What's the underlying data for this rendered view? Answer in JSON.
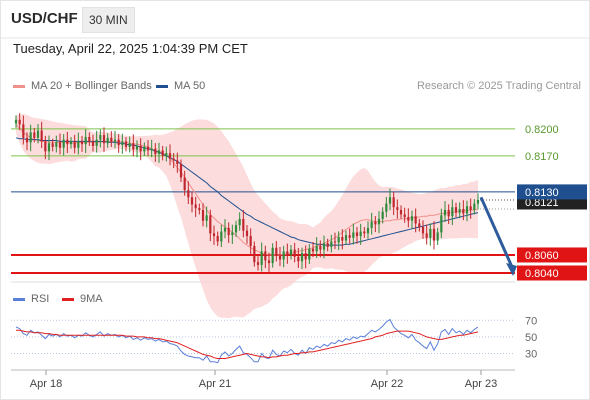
{
  "header": {
    "pair": "USD/CHF",
    "timeframe": "30 MIN"
  },
  "datetime": "Tuesday, April 22, 2025 1:04:39 PM CET",
  "credit": "Research © 2025 Trading Central",
  "legend": {
    "ma20": "MA 20 + Bollinger Bands",
    "ma50": "MA 50",
    "rsi": "RSI",
    "ma9": "9MA"
  },
  "colors": {
    "up": "#2f8a3c",
    "down": "#c0262d",
    "ma20": "#f0908a",
    "ma50": "#1f4f8f",
    "band": "#fbd0d0",
    "resistance": "#7cc44a",
    "support": "#e01414",
    "current": "#1f4f8f",
    "arrow": "#2d5b9c",
    "rsi": "#5a7fd8",
    "rsi_ma": "#e02020"
  },
  "chart_data": [
    {
      "type": "candlestick",
      "title": "USD/CHF 30 MIN",
      "ylim": [
        0.803,
        0.8232
      ],
      "x_ticks": [
        "Apr 18",
        "Apr 21",
        "Apr 22",
        "Apr 23"
      ],
      "current_price": "0.8121",
      "levels": [
        {
          "label": "0.8200",
          "value": 0.82,
          "kind": "resistance"
        },
        {
          "label": "0.8170",
          "value": 0.817,
          "kind": "resistance"
        },
        {
          "label": "0.8130",
          "value": 0.813,
          "kind": "pivot"
        },
        {
          "label": "0.8060",
          "value": 0.806,
          "kind": "support"
        },
        {
          "label": "0.8040",
          "value": 0.804,
          "kind": "support"
        }
      ],
      "forecast": {
        "from": 0.8124,
        "to": 0.804
      },
      "series": [
        {
          "name": "Close",
          "values": [
            0.821,
            0.8205,
            0.819,
            0.8185,
            0.8196,
            0.819,
            0.8198,
            0.8186,
            0.8175,
            0.8184,
            0.818,
            0.8185,
            0.8179,
            0.8188,
            0.8183,
            0.8186,
            0.8179,
            0.8186,
            0.8183,
            0.8191,
            0.8186,
            0.8181,
            0.8188,
            0.8193,
            0.8184,
            0.819,
            0.8186,
            0.8188,
            0.8182,
            0.8186,
            0.818,
            0.8184,
            0.8177,
            0.8181,
            0.8175,
            0.818,
            0.8176,
            0.8178,
            0.8172,
            0.8176,
            0.817,
            0.8173,
            0.8167,
            0.8165,
            0.8161,
            0.8146,
            0.8132,
            0.8124,
            0.8116,
            0.8112,
            0.811,
            0.8098,
            0.8104,
            0.8084,
            0.8081,
            0.8075,
            0.8086,
            0.809,
            0.8082,
            0.8085,
            0.8093,
            0.81,
            0.8087,
            0.8081,
            0.807,
            0.8052,
            0.8049,
            0.8064,
            0.8054,
            0.8051,
            0.8068,
            0.8059,
            0.8055,
            0.8064,
            0.806,
            0.8066,
            0.8058,
            0.8053,
            0.8062,
            0.8055,
            0.8067,
            0.8064,
            0.807,
            0.8066,
            0.8073,
            0.8069,
            0.8075,
            0.8074,
            0.808,
            0.8076,
            0.8082,
            0.8079,
            0.8085,
            0.8081,
            0.8086,
            0.8084,
            0.809,
            0.8097,
            0.8094,
            0.81,
            0.8108,
            0.8117,
            0.8124,
            0.8113,
            0.811,
            0.8105,
            0.8102,
            0.8098,
            0.8103,
            0.8095,
            0.8091,
            0.8084,
            0.8079,
            0.8089,
            0.8076,
            0.8085,
            0.8104,
            0.811,
            0.8103,
            0.8113,
            0.8107,
            0.8111,
            0.8106,
            0.8114,
            0.811,
            0.8117,
            0.8121
          ]
        },
        {
          "name": "MA 20",
          "values": [
            0.8205,
            0.82,
            0.8196,
            0.8193,
            0.819,
            0.8188,
            0.8187,
            0.8186,
            0.8186,
            0.8185,
            0.8185,
            0.8185,
            0.8185,
            0.8185,
            0.8185,
            0.8184,
            0.8184,
            0.8185,
            0.8185,
            0.8185,
            0.8185,
            0.8185,
            0.8185,
            0.8185,
            0.8186,
            0.8186,
            0.8186,
            0.8186,
            0.8186,
            0.8185,
            0.8185,
            0.8184,
            0.8183,
            0.8183,
            0.8182,
            0.8181,
            0.818,
            0.8178,
            0.8176,
            0.8175,
            0.8173,
            0.8171,
            0.8167,
            0.8162,
            0.8157,
            0.8152,
            0.8146,
            0.814,
            0.8134,
            0.8128,
            0.8122,
            0.8116,
            0.811,
            0.8105,
            0.8101,
            0.8097,
            0.8094,
            0.8091,
            0.8088,
            0.8085,
            0.8082,
            0.8078,
            0.8074,
            0.8071,
            0.8068,
            0.8066,
            0.8064,
            0.8062,
            0.8061,
            0.806,
            0.806,
            0.806,
            0.806,
            0.8061,
            0.8061,
            0.8062,
            0.8063,
            0.8064,
            0.8065,
            0.8066,
            0.8067,
            0.8068,
            0.807,
            0.8071,
            0.8073,
            0.8075,
            0.8077,
            0.8079,
            0.8082,
            0.8085,
            0.8088,
            0.8091,
            0.8094,
            0.8096,
            0.8098,
            0.8099,
            0.8099,
            0.8098,
            0.8097,
            0.8097,
            0.8097,
            0.8098,
            0.8098,
            0.8099,
            0.8099,
            0.81,
            0.81,
            0.8101,
            0.8101,
            0.8102,
            0.8102,
            0.8103,
            0.8103,
            0.8104,
            0.8104,
            0.8105,
            0.8106,
            0.8106,
            0.8107,
            0.8107,
            0.8108,
            0.8108,
            0.8109,
            0.8109,
            0.811,
            0.811,
            0.8111
          ]
        },
        {
          "name": "MA 50",
          "values": [
            0.819,
            0.8189,
            0.8189,
            0.8188,
            0.8188,
            0.8188,
            0.8188,
            0.8187,
            0.8187,
            0.8187,
            0.8187,
            0.8187,
            0.8186,
            0.8186,
            0.8186,
            0.8186,
            0.8186,
            0.8186,
            0.8186,
            0.8186,
            0.8186,
            0.8186,
            0.8186,
            0.8186,
            0.8186,
            0.8185,
            0.8185,
            0.8185,
            0.8184,
            0.8184,
            0.8183,
            0.8182,
            0.8182,
            0.8181,
            0.818,
            0.8179,
            0.8178,
            0.8177,
            0.8175,
            0.8174,
            0.8172,
            0.817,
            0.8168,
            0.8166,
            0.8164,
            0.8161,
            0.8158,
            0.8155,
            0.8152,
            0.8149,
            0.8146,
            0.8143,
            0.814,
            0.8136,
            0.8133,
            0.813,
            0.8126,
            0.8123,
            0.812,
            0.8117,
            0.8114,
            0.8111,
            0.8108,
            0.8105,
            0.8103,
            0.81,
            0.8098,
            0.8096,
            0.8094,
            0.8092,
            0.809,
            0.8088,
            0.8086,
            0.8084,
            0.8082,
            0.808,
            0.8079,
            0.8077,
            0.8076,
            0.8075,
            0.8074,
            0.8073,
            0.8072,
            0.8072,
            0.8071,
            0.8071,
            0.8071,
            0.8071,
            0.8071,
            0.8071,
            0.8072,
            0.8072,
            0.8073,
            0.8074,
            0.8075,
            0.8076,
            0.8077,
            0.8078,
            0.8079,
            0.808,
            0.8081,
            0.8082,
            0.8083,
            0.8084,
            0.8085,
            0.8086,
            0.8087,
            0.8088,
            0.8089,
            0.809,
            0.8091,
            0.8092,
            0.8093,
            0.8094,
            0.8095,
            0.8096,
            0.8097,
            0.8098,
            0.8099,
            0.81,
            0.8101,
            0.8102,
            0.8103,
            0.8104,
            0.8105,
            0.8106,
            0.8107
          ]
        }
      ]
    },
    {
      "type": "line",
      "title": "RSI",
      "ylim": [
        15,
        80
      ],
      "y_ticks": [
        70,
        50,
        30
      ],
      "series": [
        {
          "name": "RSI",
          "values": [
            62,
            60,
            54,
            52,
            58,
            55,
            56,
            52,
            48,
            53,
            51,
            53,
            50,
            54,
            51,
            52,
            49,
            52,
            51,
            55,
            52,
            50,
            53,
            56,
            51,
            54,
            52,
            53,
            50,
            52,
            49,
            51,
            47,
            49,
            46,
            49,
            47,
            48,
            45,
            47,
            44,
            45,
            42,
            41,
            39,
            33,
            29,
            27,
            26,
            25,
            25,
            22,
            27,
            20,
            20,
            19,
            28,
            32,
            27,
            30,
            35,
            39,
            31,
            29,
            25,
            20,
            20,
            30,
            25,
            24,
            34,
            29,
            27,
            33,
            31,
            35,
            30,
            28,
            34,
            30,
            37,
            35,
            39,
            37,
            41,
            39,
            43,
            42,
            46,
            44,
            48,
            46,
            50,
            48,
            51,
            50,
            54,
            58,
            56,
            59,
            63,
            68,
            71,
            62,
            58,
            54,
            52,
            49,
            53,
            46,
            43,
            39,
            36,
            44,
            34,
            42,
            56,
            59,
            53,
            60,
            55,
            57,
            53,
            58,
            55,
            59,
            62
          ]
        },
        {
          "name": "9MA",
          "values": [
            58,
            58,
            57,
            56,
            56,
            55,
            55,
            55,
            54,
            54,
            53,
            53,
            52,
            52,
            52,
            52,
            52,
            52,
            52,
            52,
            52,
            52,
            52,
            52,
            52,
            52,
            52,
            52,
            52,
            52,
            51,
            51,
            51,
            50,
            50,
            50,
            49,
            49,
            48,
            48,
            47,
            46,
            45,
            44,
            43,
            41,
            39,
            37,
            35,
            33,
            31,
            29,
            28,
            27,
            25,
            24,
            24,
            24,
            25,
            26,
            27,
            28,
            29,
            30,
            29,
            28,
            27,
            26,
            26,
            25,
            26,
            26,
            27,
            28,
            28,
            29,
            30,
            30,
            31,
            31,
            32,
            32,
            33,
            34,
            35,
            36,
            37,
            38,
            39,
            40,
            41,
            42,
            43,
            44,
            45,
            46,
            47,
            48,
            50,
            51,
            52,
            54,
            55,
            56,
            57,
            57,
            57,
            57,
            56,
            55,
            54,
            52,
            50,
            49,
            48,
            47,
            47,
            48,
            49,
            50,
            51,
            52,
            52,
            53,
            54,
            55,
            56
          ]
        }
      ]
    }
  ]
}
